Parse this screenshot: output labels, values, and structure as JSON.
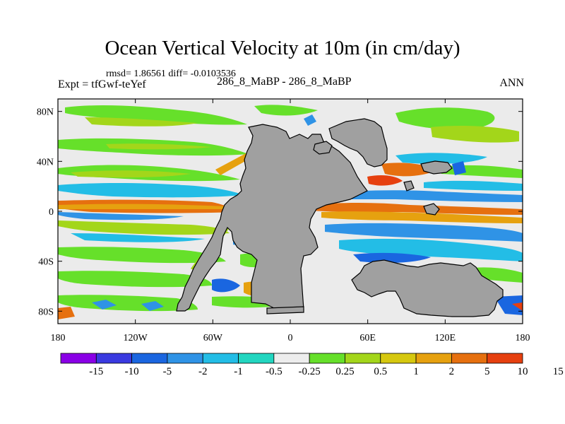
{
  "title": "Ocean Vertical Velocity at 10m (in cm/day)",
  "stats": {
    "rmsd_text": "rmsd= 1.86561 diff= -0.0103536"
  },
  "left_label": "Expt = tfGwf-teYef",
  "center_label": "286_8_MaBP - 286_8_MaBP",
  "right_label": "ANN",
  "map": {
    "lon_range": [
      -180,
      180
    ],
    "lat_range": [
      -90,
      90
    ],
    "y_ticks": [
      {
        "lat": 80,
        "label": "80N"
      },
      {
        "lat": 40,
        "label": "40N"
      },
      {
        "lat": 0,
        "label": "0"
      },
      {
        "lat": -40,
        "label": "40S"
      },
      {
        "lat": -80,
        "label": "80S"
      }
    ],
    "x_ticks": [
      {
        "lon": -180,
        "label": "180"
      },
      {
        "lon": -120,
        "label": "120W"
      },
      {
        "lon": -60,
        "label": "60W"
      },
      {
        "lon": 0,
        "label": "0"
      },
      {
        "lon": 60,
        "label": "60E"
      },
      {
        "lon": 120,
        "label": "120E"
      },
      {
        "lon": 180,
        "label": "180"
      }
    ],
    "land_color": "#a0a0a0",
    "ocean_zero_color": "#ebebeb"
  },
  "colorbar": {
    "colors": [
      "#8a00e6",
      "#3a3ae0",
      "#1a66e0",
      "#2f93e6",
      "#23bde6",
      "#22d6c0",
      "#ededed",
      "#66e02a",
      "#a3d61a",
      "#d6c80f",
      "#e6a10f",
      "#e6700f",
      "#e6400f"
    ],
    "labels": [
      "-15",
      "-10",
      "-5",
      "-2",
      "-1",
      "-0.5",
      "-0.25",
      "0.25",
      "0.5",
      "1",
      "2",
      "5",
      "10",
      "15"
    ]
  }
}
